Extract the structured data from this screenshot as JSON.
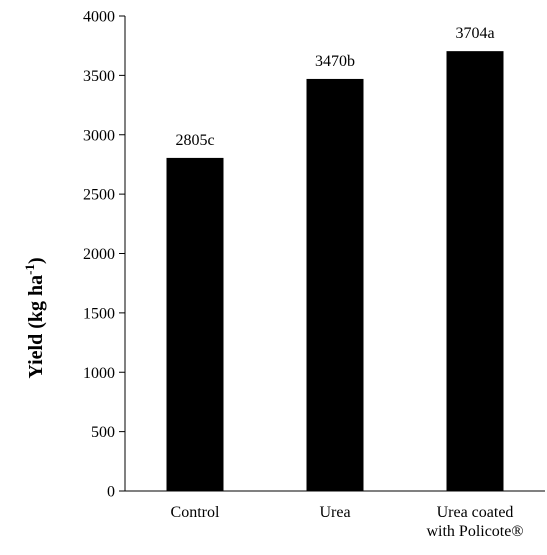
{
  "chart_data": {
    "type": "bar",
    "categories": [
      [
        "Control"
      ],
      [
        "Urea"
      ],
      [
        "Urea coated",
        "with Policote®"
      ]
    ],
    "values": [
      2805,
      3470,
      3704
    ],
    "data_labels": [
      "2805c",
      "3470b",
      "3704a"
    ],
    "title": "",
    "xlabel": "",
    "ylabel": {
      "main": "Yield (kg ha",
      "superscript": "-1",
      "close": ")"
    },
    "ylim": [
      0,
      4000
    ],
    "yticks": [
      0,
      500,
      1000,
      1500,
      2000,
      2500,
      3000,
      3500,
      4000
    ],
    "grid": false,
    "legend": "none",
    "bar_color": "#000000"
  }
}
